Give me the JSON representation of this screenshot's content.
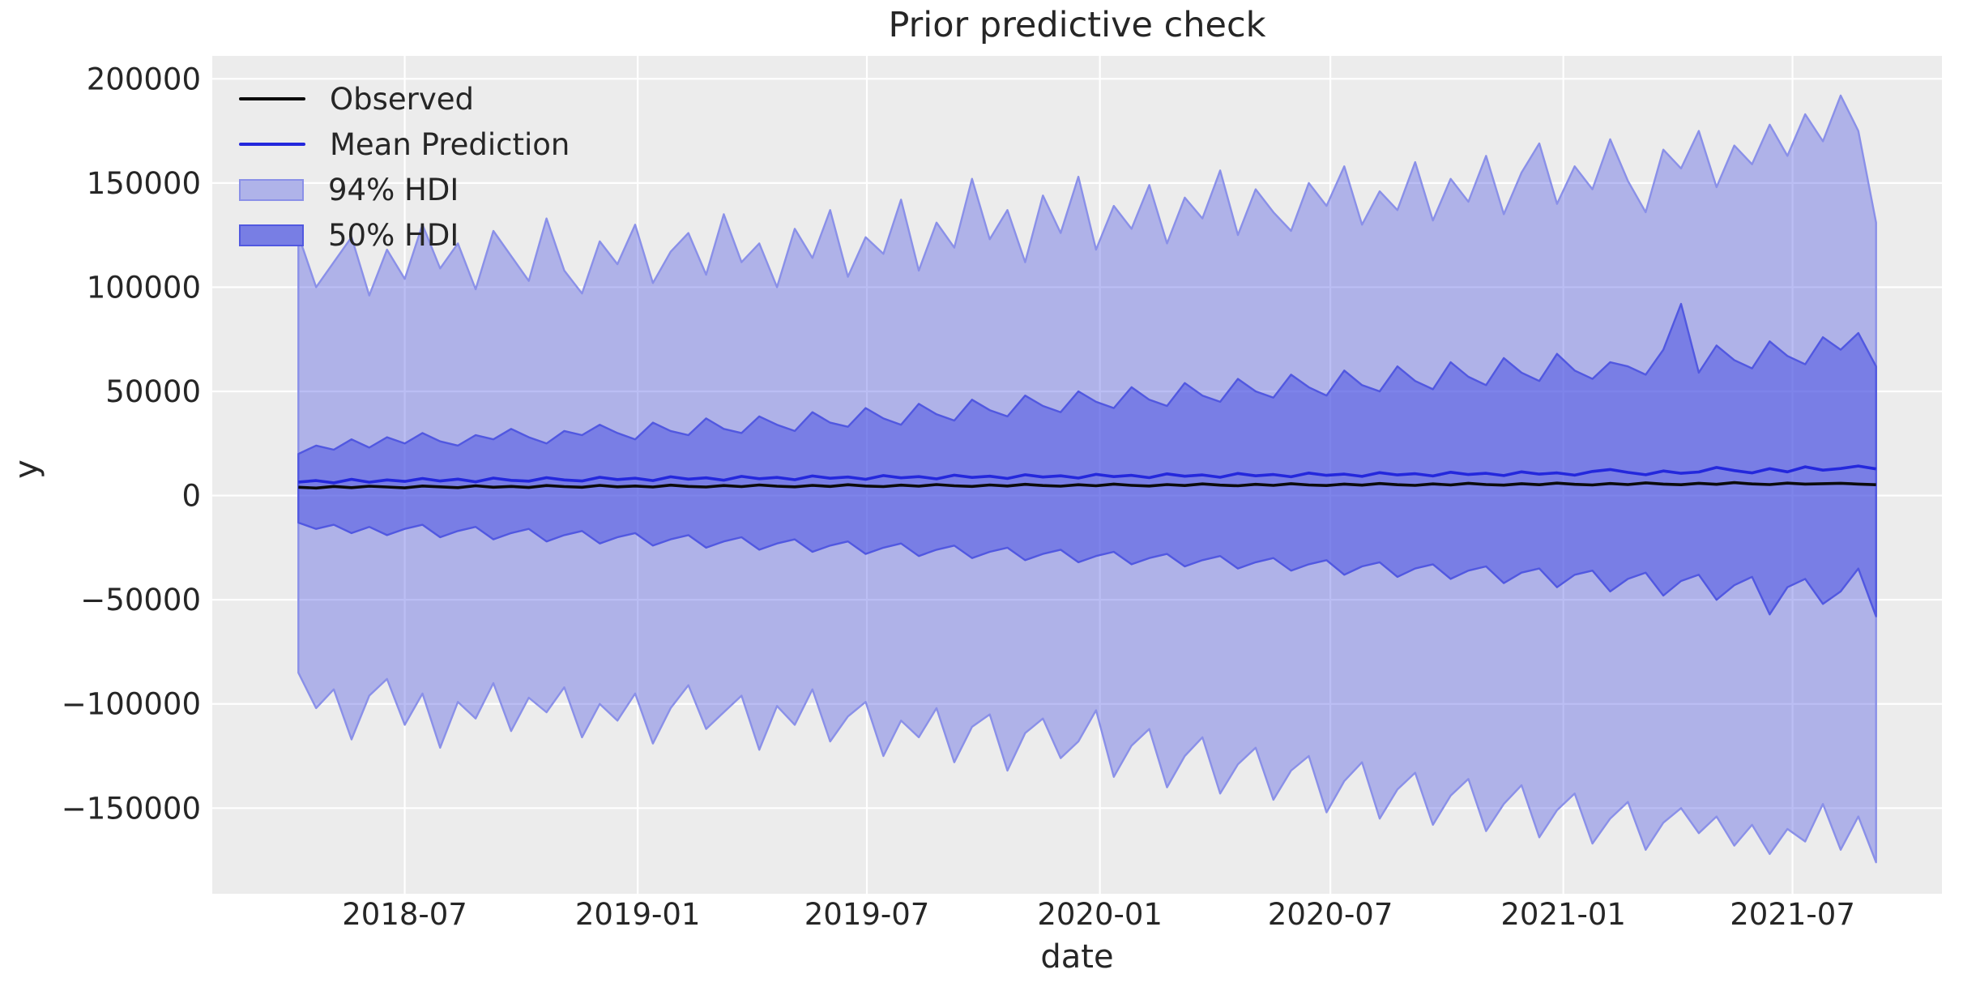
{
  "title": "Prior predictive check",
  "axes": {
    "x_label": "date",
    "y_label": "y",
    "x_tick_labels": [
      "2018-07",
      "2019-01",
      "2019-07",
      "2020-01",
      "2020-07",
      "2021-01",
      "2021-07"
    ],
    "y_tick_labels": [
      "200000",
      "150000",
      "100000",
      "50000",
      "0",
      "−50000",
      "−100000",
      "−150000"
    ]
  },
  "legend": {
    "items": [
      {
        "label": "Observed",
        "type": "line",
        "color": "#0b0b0b"
      },
      {
        "label": "Mean Prediction",
        "type": "line",
        "color": "#2428dc"
      },
      {
        "label": "94% HDI",
        "type": "patch",
        "fill": "#afb3e9",
        "border": "#8a90e8"
      },
      {
        "label": "50% HDI",
        "type": "patch",
        "fill": "#787ee4",
        "border": "#5158e0"
      }
    ]
  },
  "style": {
    "figure_background": "#ffffff",
    "axes_background": "#ececec",
    "grid_color": "#ffffff",
    "text_color": "#262626",
    "hdi94_fill": "rgba(76,84,226,0.38)",
    "hdi94_edge": "#8a90e8",
    "hdi50_fill": "rgba(76,84,226,0.55)",
    "hdi50_edge": "#5158e0",
    "observed_color": "#0b0b0b",
    "mean_color": "#2428dc"
  },
  "chart_data": {
    "type": "line",
    "title": "Prior predictive check",
    "xlabel": "date",
    "ylabel": "y",
    "legend_position": "upper left",
    "grid": true,
    "xlim_dates": [
      "2018-01-30",
      "2021-10-27"
    ],
    "x_total_days": 1366,
    "first_point_date": "2018-04-08",
    "first_point_day": 68,
    "step_days": 14,
    "n_points": 90,
    "last_point_date": "2021-09-05",
    "ylim": [
      -191100,
      211000
    ],
    "x_ticks": [
      {
        "label": "2018-07",
        "day": 152
      },
      {
        "label": "2019-01",
        "day": 336
      },
      {
        "label": "2019-07",
        "day": 517
      },
      {
        "label": "2020-01",
        "day": 701
      },
      {
        "label": "2020-07",
        "day": 883
      },
      {
        "label": "2021-01",
        "day": 1067
      },
      {
        "label": "2021-07",
        "day": 1248
      }
    ],
    "y_ticks": [
      {
        "label": "200000",
        "value": 200000
      },
      {
        "label": "150000",
        "value": 150000
      },
      {
        "label": "100000",
        "value": 100000
      },
      {
        "label": "50000",
        "value": 50000
      },
      {
        "label": "0",
        "value": 0
      },
      {
        "label": "−50000",
        "value": -50000
      },
      {
        "label": "−100000",
        "value": -100000
      },
      {
        "label": "−150000",
        "value": -150000
      }
    ],
    "series": [
      {
        "name": "94% HDI upper",
        "values": [
          125000,
          100000,
          112000,
          124000,
          96000,
          118000,
          104000,
          130000,
          109000,
          121000,
          99000,
          127000,
          115000,
          103000,
          133000,
          108000,
          97000,
          122000,
          111000,
          130000,
          102000,
          117000,
          126000,
          106000,
          135000,
          112000,
          121000,
          100000,
          128000,
          114000,
          137000,
          105000,
          124000,
          116000,
          142000,
          108000,
          131000,
          119000,
          152000,
          123000,
          137000,
          112000,
          144000,
          126000,
          153000,
          118000,
          139000,
          128000,
          149000,
          121000,
          143000,
          133000,
          156000,
          125000,
          147000,
          136000,
          127000,
          150000,
          139000,
          158000,
          130000,
          146000,
          137000,
          160000,
          132000,
          152000,
          141000,
          163000,
          135000,
          155000,
          169000,
          140000,
          158000,
          147000,
          171000,
          151000,
          136000,
          166000,
          157000,
          175000,
          148000,
          168000,
          159000,
          178000,
          163000,
          183000,
          170000,
          192000,
          175000,
          131000
        ]
      },
      {
        "name": "94% HDI lower",
        "values": [
          -85000,
          -102000,
          -93000,
          -117000,
          -96000,
          -88000,
          -110000,
          -95000,
          -121000,
          -99000,
          -107000,
          -90000,
          -113000,
          -97000,
          -104000,
          -92000,
          -116000,
          -100000,
          -108000,
          -95000,
          -119000,
          -102000,
          -91000,
          -112000,
          -104000,
          -96000,
          -122000,
          -101000,
          -110000,
          -93000,
          -118000,
          -106000,
          -99000,
          -125000,
          -108000,
          -116000,
          -102000,
          -128000,
          -111000,
          -105000,
          -132000,
          -114000,
          -107000,
          -126000,
          -118000,
          -103000,
          -135000,
          -120000,
          -112000,
          -140000,
          -125000,
          -116000,
          -143000,
          -129000,
          -121000,
          -146000,
          -132000,
          -125000,
          -152000,
          -137000,
          -128000,
          -155000,
          -141000,
          -133000,
          -158000,
          -144000,
          -136000,
          -161000,
          -148000,
          -139000,
          -164000,
          -151000,
          -143000,
          -167000,
          -155000,
          -147000,
          -170000,
          -157000,
          -150000,
          -162000,
          -154000,
          -168000,
          -158000,
          -172000,
          -160000,
          -166000,
          -148000,
          -170000,
          -154000,
          -176000
        ]
      },
      {
        "name": "50% HDI upper",
        "values": [
          20000,
          24000,
          22000,
          27000,
          23000,
          28000,
          25000,
          30000,
          26000,
          24000,
          29000,
          27000,
          32000,
          28000,
          25000,
          31000,
          29000,
          34000,
          30000,
          27000,
          35000,
          31000,
          29000,
          37000,
          32000,
          30000,
          38000,
          34000,
          31000,
          40000,
          35000,
          33000,
          42000,
          37000,
          34000,
          44000,
          39000,
          36000,
          46000,
          41000,
          38000,
          48000,
          43000,
          40000,
          50000,
          45000,
          42000,
          52000,
          46000,
          43000,
          54000,
          48000,
          45000,
          56000,
          50000,
          47000,
          58000,
          52000,
          48000,
          60000,
          53000,
          50000,
          62000,
          55000,
          51000,
          64000,
          57000,
          53000,
          66000,
          59000,
          55000,
          68000,
          60000,
          56000,
          64000,
          62000,
          58000,
          70000,
          92000,
          59000,
          72000,
          65000,
          61000,
          74000,
          67000,
          63000,
          76000,
          70000,
          78000,
          62000
        ]
      },
      {
        "name": "50% HDI lower",
        "values": [
          -13000,
          -16000,
          -14000,
          -18000,
          -15000,
          -19000,
          -16000,
          -14000,
          -20000,
          -17000,
          -15000,
          -21000,
          -18000,
          -16000,
          -22000,
          -19000,
          -17000,
          -23000,
          -20000,
          -18000,
          -24000,
          -21000,
          -19000,
          -25000,
          -22000,
          -20000,
          -26000,
          -23000,
          -21000,
          -27000,
          -24000,
          -22000,
          -28000,
          -25000,
          -23000,
          -29000,
          -26000,
          -24000,
          -30000,
          -27000,
          -25000,
          -31000,
          -28000,
          -26000,
          -32000,
          -29000,
          -27000,
          -33000,
          -30000,
          -28000,
          -34000,
          -31000,
          -29000,
          -35000,
          -32000,
          -30000,
          -36000,
          -33000,
          -31000,
          -38000,
          -34000,
          -32000,
          -39000,
          -35000,
          -33000,
          -40000,
          -36000,
          -34000,
          -42000,
          -37000,
          -35000,
          -44000,
          -38000,
          -36000,
          -46000,
          -40000,
          -37000,
          -48000,
          -41000,
          -38000,
          -50000,
          -43000,
          -39000,
          -57000,
          -44000,
          -40000,
          -52000,
          -46000,
          -35000,
          -58000
        ]
      },
      {
        "name": "Mean Prediction",
        "values": [
          6500,
          7200,
          6100,
          7800,
          6400,
          7500,
          6800,
          8200,
          7000,
          7900,
          6600,
          8400,
          7300,
          6900,
          8600,
          7500,
          7000,
          8800,
          7700,
          8300,
          7200,
          9000,
          7900,
          8500,
          7400,
          9200,
          8100,
          8700,
          7600,
          9400,
          8300,
          8900,
          7800,
          9600,
          8500,
          9100,
          8000,
          9800,
          8700,
          9300,
          8200,
          10000,
          8900,
          9500,
          8400,
          10200,
          9100,
          9700,
          8600,
          10400,
          9300,
          9900,
          8800,
          10600,
          9500,
          10100,
          9000,
          10800,
          9700,
          10300,
          9200,
          11000,
          9900,
          10500,
          9400,
          11200,
          10100,
          10700,
          9600,
          11400,
          10300,
          10900,
          9800,
          11600,
          12500,
          11100,
          10000,
          11800,
          10700,
          11300,
          13500,
          12000,
          10900,
          12900,
          11400,
          13800,
          12200,
          13000,
          14200,
          12800
        ]
      },
      {
        "name": "Observed",
        "values": [
          4000,
          3600,
          4400,
          3800,
          4500,
          4100,
          3700,
          4600,
          4200,
          3800,
          4700,
          4000,
          4400,
          3900,
          4800,
          4300,
          4000,
          4900,
          4200,
          4600,
          4100,
          5000,
          4400,
          4100,
          4800,
          4300,
          5100,
          4500,
          4200,
          4900,
          4400,
          5200,
          4600,
          4300,
          5000,
          4500,
          5300,
          4700,
          4400,
          5100,
          4600,
          5400,
          4800,
          4500,
          5200,
          4700,
          5500,
          4900,
          4600,
          5300,
          4800,
          5600,
          5000,
          4700,
          5400,
          4900,
          5700,
          5100,
          4800,
          5500,
          5000,
          5800,
          5200,
          4900,
          5600,
          5100,
          5900,
          5300,
          5000,
          5700,
          5200,
          6000,
          5400,
          5100,
          5800,
          5300,
          6100,
          5500,
          5200,
          5900,
          5400,
          6200,
          5600,
          5300,
          6000,
          5500,
          5700,
          5900,
          5500,
          5200
        ]
      }
    ]
  }
}
